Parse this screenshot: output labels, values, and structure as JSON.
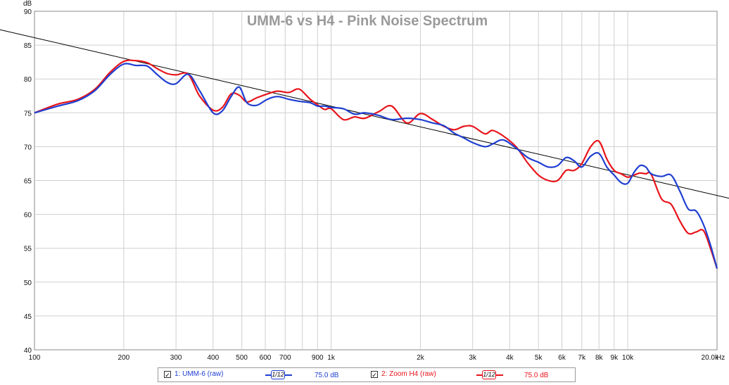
{
  "chart_data": {
    "type": "line",
    "title": "UMM-6 vs H4 -  Pink Noise Spectrum",
    "ylabel": "dB",
    "xlabel_unit": "Hz",
    "x_scale": "log",
    "xlim": [
      100,
      20000
    ],
    "ylim": [
      40,
      90
    ],
    "grid": true,
    "y_ticks": [
      "40",
      "45",
      "50",
      "55",
      "60",
      "65",
      "70",
      "75",
      "80",
      "85",
      "90"
    ],
    "x_ticks": [
      {
        "v": 100,
        "label": "100"
      },
      {
        "v": 200,
        "label": "200"
      },
      {
        "v": 300,
        "label": "300"
      },
      {
        "v": 400,
        "label": "400"
      },
      {
        "v": 500,
        "label": "500"
      },
      {
        "v": 600,
        "label": "600"
      },
      {
        "v": 700,
        "label": "700"
      },
      {
        "v": 900,
        "label": "900"
      },
      {
        "v": 1000,
        "label": "1k"
      },
      {
        "v": 2000,
        "label": "2k"
      },
      {
        "v": 3000,
        "label": "3k"
      },
      {
        "v": 4000,
        "label": "4k"
      },
      {
        "v": 5000,
        "label": "5k"
      },
      {
        "v": 6000,
        "label": "6k"
      },
      {
        "v": 7000,
        "label": "7k"
      },
      {
        "v": 8000,
        "label": "8k"
      },
      {
        "v": 9000,
        "label": "9k"
      },
      {
        "v": 10000,
        "label": "10k"
      },
      {
        "v": 20000,
        "label": "20.0k"
      }
    ],
    "series": [
      {
        "name": "1: UMM-6 (raw)",
        "color": "#1f3fd1",
        "x": [
          100,
          120,
          140,
          160,
          180,
          200,
          220,
          240,
          260,
          280,
          300,
          330,
          360,
          400,
          430,
          460,
          490,
          520,
          560,
          610,
          660,
          720,
          780,
          850,
          900,
          950,
          1000,
          1100,
          1200,
          1300,
          1450,
          1600,
          1800,
          2000,
          2200,
          2400,
          2600,
          2800,
          3000,
          3300,
          3500,
          3800,
          4200,
          4600,
          5000,
          5400,
          5800,
          6200,
          6600,
          7000,
          7500,
          8000,
          8500,
          9000,
          9500,
          10000,
          10500,
          11000,
          11500,
          12000,
          13000,
          14000,
          15000,
          16000,
          17000,
          18000,
          19000,
          20000
        ],
        "values": [
          75,
          76,
          76.8,
          78.3,
          80.7,
          82.2,
          82.0,
          81.9,
          80.6,
          79.5,
          79.3,
          80.7,
          78.3,
          75.0,
          75.3,
          77.4,
          78.8,
          76.5,
          76.1,
          77.0,
          77.4,
          77.0,
          76.7,
          76.5,
          76.0,
          76.0,
          75.8,
          75.6,
          74.8,
          75.0,
          74.6,
          74.0,
          74.2,
          74.0,
          73.5,
          73.1,
          72.0,
          71.3,
          70.6,
          70.0,
          70.4,
          71.0,
          69.8,
          68.4,
          67.7,
          67.0,
          67.2,
          68.4,
          67.9,
          67.0,
          68.6,
          69.0,
          67.0,
          65.8,
          64.7,
          64.6,
          66.2,
          67.2,
          67.0,
          66.0,
          65.6,
          65.8,
          63.4,
          60.8,
          60.5,
          58.5,
          55.5,
          52.0
        ]
      },
      {
        "name": "2: Zoom H4 (raw)",
        "color": "#e8141b",
        "x": [
          100,
          120,
          140,
          160,
          180,
          200,
          220,
          240,
          260,
          280,
          300,
          330,
          360,
          400,
          430,
          460,
          490,
          520,
          560,
          610,
          660,
          720,
          780,
          850,
          900,
          950,
          1000,
          1100,
          1200,
          1300,
          1450,
          1600,
          1800,
          2000,
          2200,
          2400,
          2600,
          2800,
          3000,
          3300,
          3500,
          3800,
          4200,
          4600,
          5000,
          5400,
          5800,
          6200,
          6600,
          7000,
          7500,
          8000,
          8500,
          9000,
          9500,
          10000,
          10500,
          11000,
          11500,
          12000,
          13000,
          14000,
          15000,
          16000,
          17000,
          18000,
          19000,
          20000
        ],
        "values": [
          75,
          76.3,
          77.0,
          78.5,
          81.0,
          82.6,
          82.7,
          82.4,
          81.5,
          80.8,
          80.6,
          80.7,
          77.5,
          75.4,
          75.8,
          77.8,
          77.6,
          76.6,
          77.2,
          77.8,
          78.2,
          78.0,
          78.5,
          77.0,
          76.2,
          75.5,
          75.6,
          74.0,
          74.4,
          74.2,
          75.2,
          76.0,
          73.5,
          74.9,
          74.0,
          73.0,
          72.5,
          73.0,
          73.0,
          71.9,
          72.4,
          71.6,
          70.0,
          67.6,
          65.8,
          65.0,
          65.0,
          66.5,
          66.5,
          67.5,
          70.0,
          70.8,
          68.2,
          66.5,
          66.0,
          65.5,
          65.8,
          66.1,
          66.0,
          65.9,
          62.3,
          61.5,
          59.0,
          57.2,
          57.4,
          57.6,
          55.0,
          52.0
        ]
      }
    ],
    "reference_line": {
      "x": [
        100,
        20000
      ],
      "values": [
        86.1,
        62.8
      ],
      "color": "#000000"
    }
  },
  "legend": {
    "items": [
      {
        "check": "✓",
        "label": "1: UMM-6 (raw)",
        "smoothing": "1/12",
        "level": "75.0 dB",
        "color": "#1f3fd1"
      },
      {
        "check": "✓",
        "label": "2: Zoom H4 (raw)",
        "smoothing": "1/12",
        "level": "75.0 dB",
        "color": "#e8141b"
      }
    ]
  }
}
